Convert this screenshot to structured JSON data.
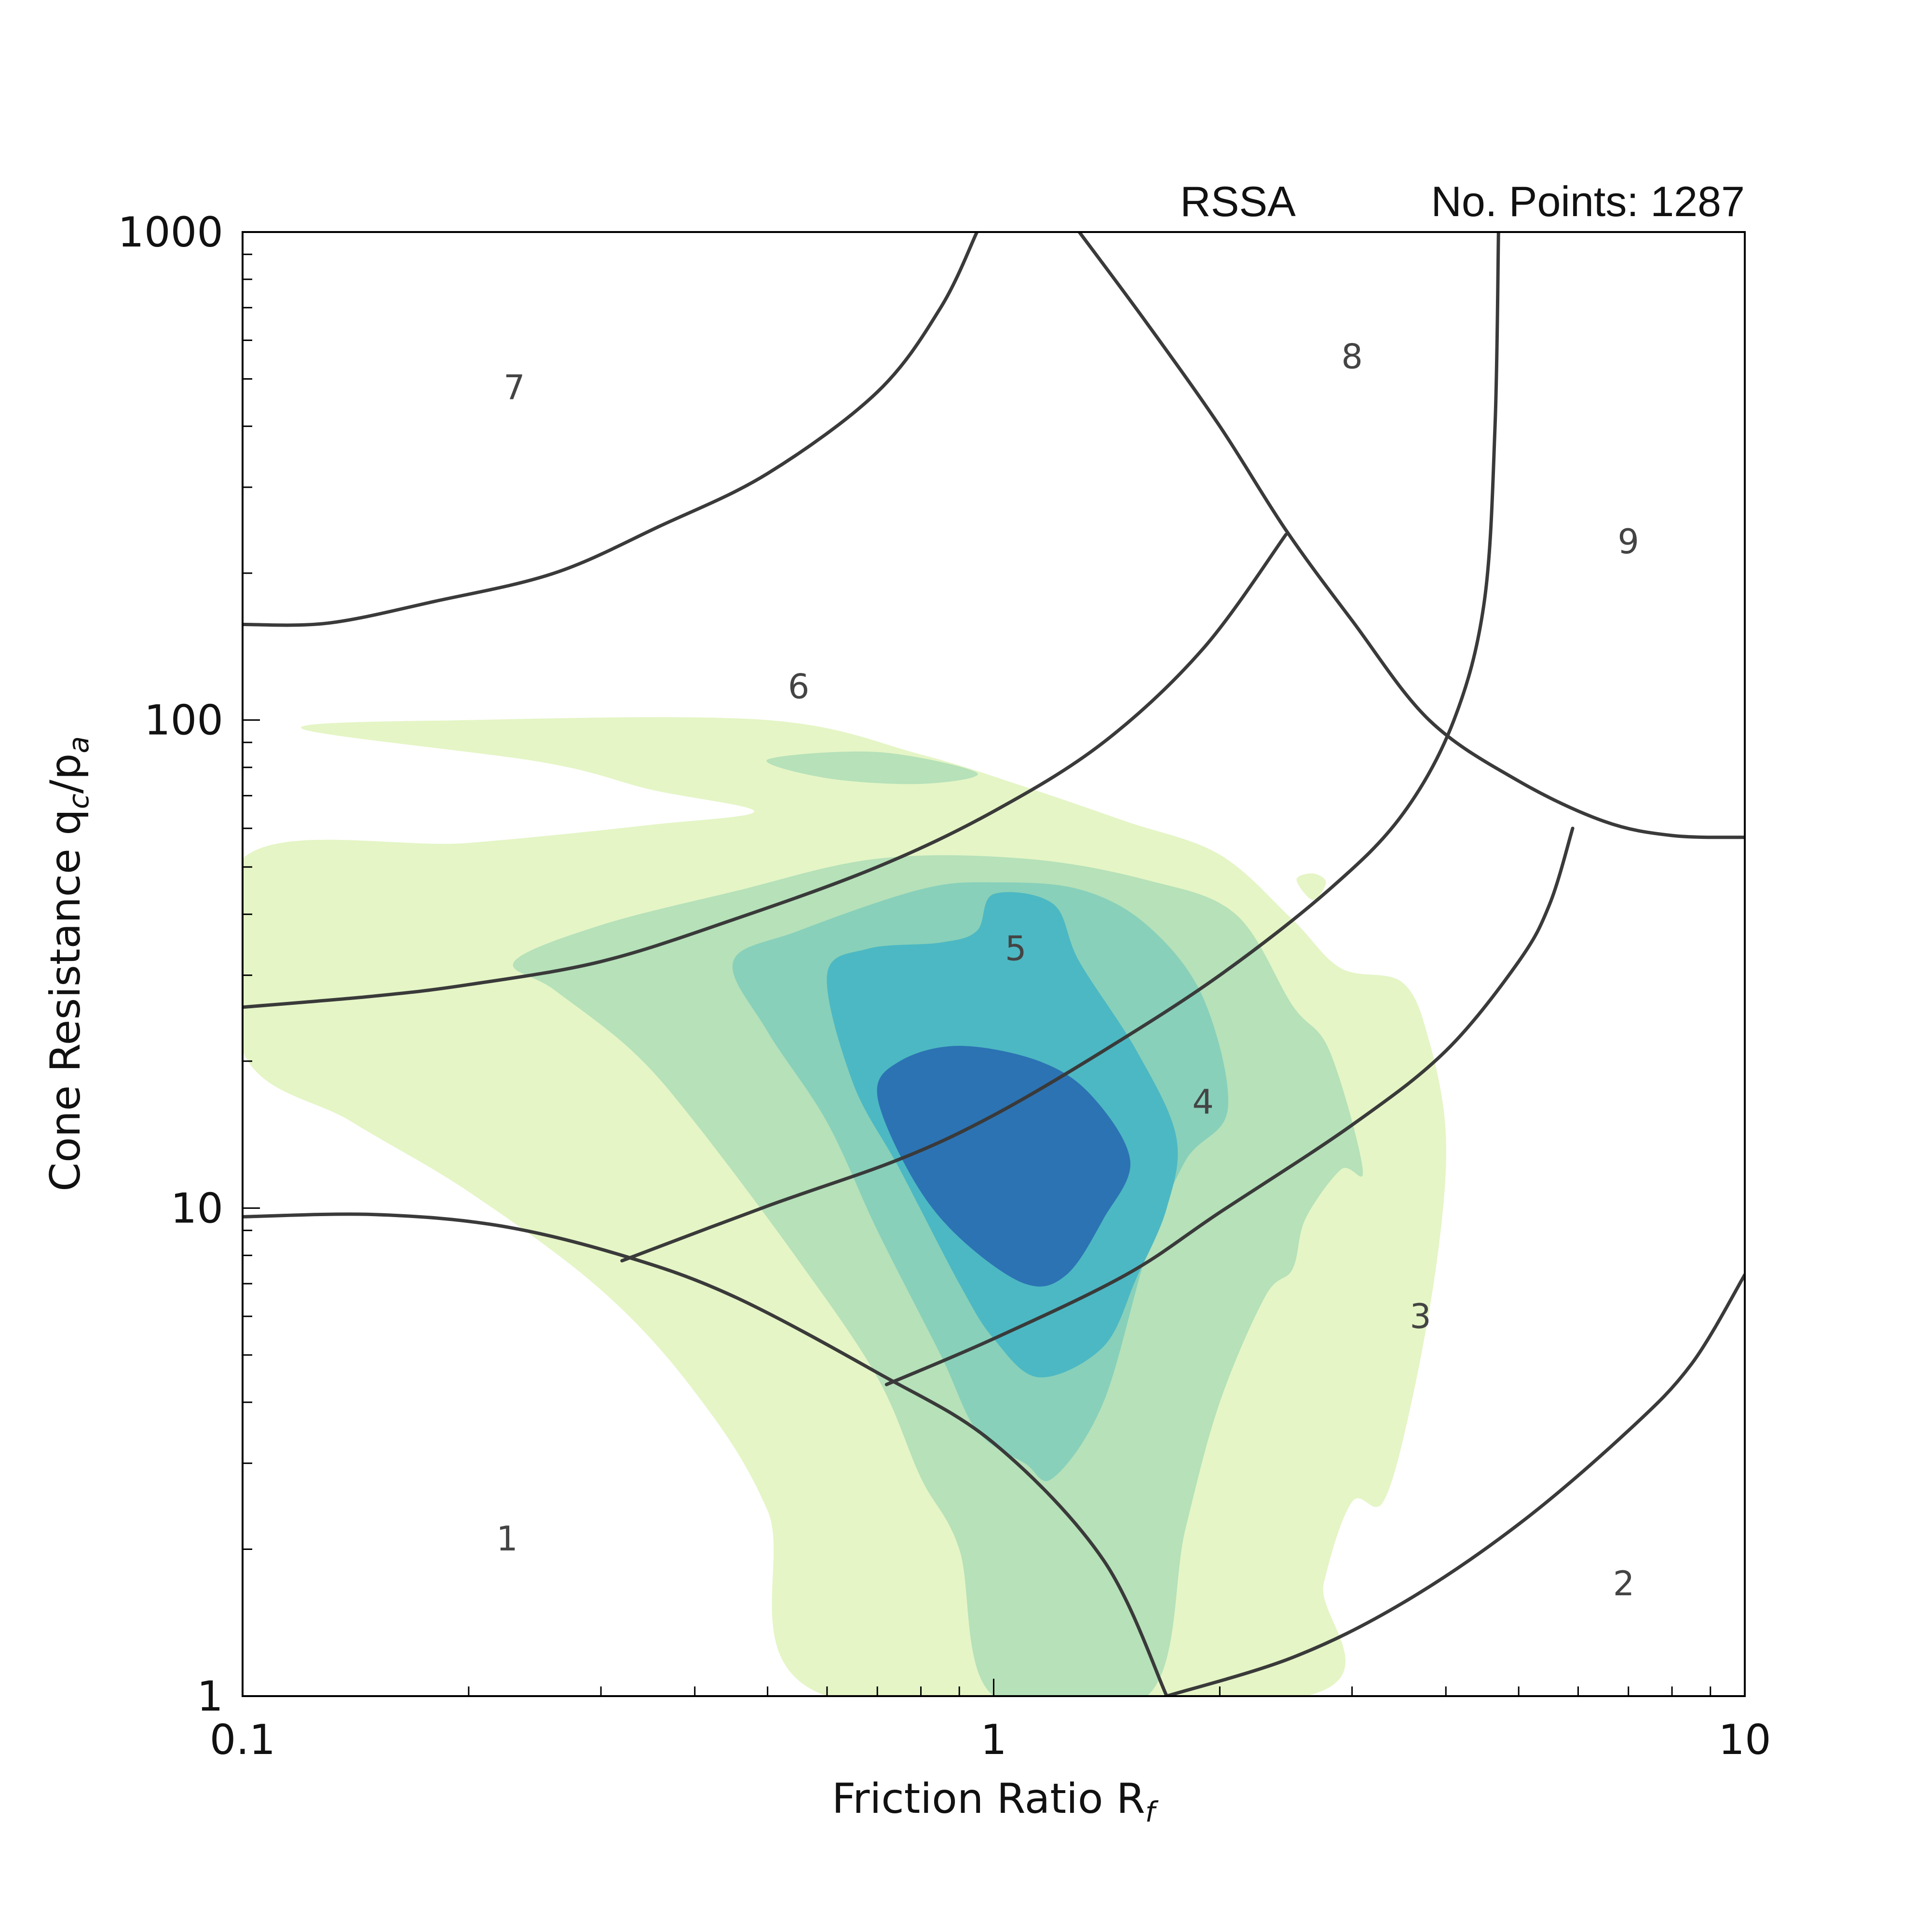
{
  "header": {
    "dataset": "RSSA",
    "points_label": "No. Points: 1287"
  },
  "chart_data": {
    "type": "contour",
    "subtype": "soil-behaviour-type chart with point-density contours",
    "dataset": "RSSA",
    "n_points": 1287,
    "xlabel": "Friction Ratio R",
    "xlabel_subscript": "f",
    "ylabel": "Cone Resistance q",
    "ylabel_sub1": "c",
    "ylabel_mid": "/p",
    "ylabel_sub2": "a",
    "xscale": "log",
    "yscale": "log",
    "xlim": [
      0.1,
      10
    ],
    "ylim": [
      1,
      1000
    ],
    "x_ticks": [
      {
        "value": 0.1,
        "label": "0.1"
      },
      {
        "value": 1,
        "label": "1"
      },
      {
        "value": 10,
        "label": "10"
      }
    ],
    "y_ticks": [
      {
        "value": 1,
        "label": "1"
      },
      {
        "value": 10,
        "label": "10"
      },
      {
        "value": 100,
        "label": "100"
      },
      {
        "value": 1000,
        "label": "1000"
      }
    ],
    "grid": false,
    "legend": "none",
    "zones": [
      {
        "label": "1",
        "x": 0.225,
        "y": 2.1
      },
      {
        "label": "2",
        "x": 6.9,
        "y": 1.7
      },
      {
        "label": "3",
        "x": 3.7,
        "y": 6.0
      },
      {
        "label": "4",
        "x": 1.9,
        "y": 16.5
      },
      {
        "label": "5",
        "x": 1.07,
        "y": 34
      },
      {
        "label": "6",
        "x": 0.55,
        "y": 117
      },
      {
        "label": "7",
        "x": 0.23,
        "y": 480
      },
      {
        "label": "8",
        "x": 3.0,
        "y": 555
      },
      {
        "label": "9",
        "x": 7.0,
        "y": 232
      }
    ],
    "zone_boundaries": [
      {
        "name": "boundary-1",
        "points": [
          [
            0.1,
            9.6
          ],
          [
            0.15,
            9.7
          ],
          [
            0.22,
            9.2
          ],
          [
            0.32,
            8.0
          ],
          [
            0.45,
            6.6
          ],
          [
            0.7,
            4.6
          ],
          [
            1.0,
            3.3
          ],
          [
            1.4,
            1.9
          ],
          [
            1.7,
            1.0
          ]
        ]
      },
      {
        "name": "boundary-2",
        "points": [
          [
            1.7,
            1.0
          ],
          [
            2.5,
            1.2
          ],
          [
            3.5,
            1.55
          ],
          [
            5.0,
            2.25
          ],
          [
            7.0,
            3.5
          ],
          [
            8.5,
            4.8
          ],
          [
            10,
            7.3
          ]
        ]
      },
      {
        "name": "boundary-3",
        "points": [
          [
            0.72,
            4.35
          ],
          [
            1.0,
            5.4
          ],
          [
            1.5,
            7.3
          ],
          [
            2.0,
            9.8
          ],
          [
            3.0,
            14.8
          ],
          [
            4.0,
            21
          ],
          [
            5.0,
            32
          ],
          [
            5.5,
            42
          ],
          [
            5.9,
            60
          ]
        ]
      },
      {
        "name": "boundary-4",
        "points": [
          [
            0.32,
            7.8
          ],
          [
            0.5,
            10.1
          ],
          [
            0.75,
            12.6
          ],
          [
            1.0,
            15.5
          ],
          [
            1.4,
            21
          ],
          [
            2.0,
            30
          ],
          [
            2.8,
            45
          ],
          [
            3.5,
            64
          ],
          [
            4.1,
            100
          ],
          [
            4.5,
            175
          ],
          [
            4.65,
            400
          ],
          [
            4.7,
            1000
          ]
        ]
      },
      {
        "name": "boundary-5",
        "points": [
          [
            0.1,
            25.8
          ],
          [
            0.15,
            27.2
          ],
          [
            0.2,
            28.7
          ],
          [
            0.3,
            32
          ],
          [
            0.45,
            39
          ],
          [
            0.7,
            50
          ],
          [
            1.0,
            65
          ],
          [
            1.4,
            90
          ],
          [
            1.9,
            140
          ],
          [
            2.45,
            240
          ]
        ]
      },
      {
        "name": "boundary-6",
        "points": [
          [
            0.1,
            157
          ],
          [
            0.13,
            158
          ],
          [
            0.18,
            175
          ],
          [
            0.26,
            200
          ],
          [
            0.36,
            250
          ],
          [
            0.5,
            320
          ],
          [
            0.7,
            470
          ],
          [
            0.85,
            700
          ],
          [
            0.95,
            1000
          ]
        ]
      },
      {
        "name": "boundary-7",
        "points": [
          [
            1.3,
            1000
          ],
          [
            1.6,
            650
          ],
          [
            2.0,
            400
          ],
          [
            2.45,
            245
          ],
          [
            3.0,
            160
          ],
          [
            3.8,
            100
          ],
          [
            5.0,
            75
          ],
          [
            6.5,
            62
          ],
          [
            8.0,
            58
          ],
          [
            10,
            57.5
          ]
        ]
      }
    ],
    "density_levels": [
      {
        "level": 1,
        "color": "#e5f5c6"
      },
      {
        "level": 2,
        "color": "#b6e1b9"
      },
      {
        "level": 3,
        "color": "#88d0ba"
      },
      {
        "level": 4,
        "color": "#4cb8c3"
      },
      {
        "level": 5,
        "color": "#2c73b3"
      }
    ],
    "contours": [
      {
        "level": 1,
        "points": [
          [
            0.1,
            52
          ],
          [
            0.2,
            56
          ],
          [
            0.35,
            61
          ],
          [
            0.48,
            65
          ],
          [
            0.35,
            72
          ],
          [
            0.25,
            82
          ],
          [
            0.12,
            96
          ],
          [
            0.2,
            100
          ],
          [
            0.5,
            100
          ],
          [
            0.8,
            85
          ],
          [
            1.1,
            73
          ],
          [
            1.5,
            62
          ],
          [
            2.0,
            53
          ],
          [
            2.5,
            39
          ],
          [
            2.9,
            31
          ],
          [
            3.5,
            29
          ],
          [
            3.8,
            22
          ],
          [
            4.0,
            14
          ],
          [
            3.9,
            8
          ],
          [
            3.6,
            4
          ],
          [
            3.3,
            2.5
          ],
          [
            3.0,
            2.5
          ],
          [
            2.75,
            1.7
          ],
          [
            2.6,
            1.0
          ],
          [
            0.6,
            1.0
          ],
          [
            0.5,
            2.4
          ],
          [
            0.4,
            4.2
          ],
          [
            0.3,
            6.8
          ],
          [
            0.2,
            10.8
          ],
          [
            0.14,
            15
          ],
          [
            0.1,
            21
          ]
        ]
      },
      {
        "level": 1,
        "points": [
          [
            2.53,
            47.1
          ],
          [
            2.66,
            48.5
          ],
          [
            2.77,
            46.5
          ],
          [
            2.66,
            42.8
          ]
        ]
      },
      {
        "level": 2,
        "points": [
          [
            0.26,
            28
          ],
          [
            0.23,
            32
          ],
          [
            0.3,
            38
          ],
          [
            0.45,
            44.5
          ],
          [
            0.7,
            52
          ],
          [
            1.1,
            52
          ],
          [
            1.6,
            47
          ],
          [
            2.1,
            40
          ],
          [
            2.5,
            26
          ],
          [
            2.8,
            21
          ],
          [
            3.1,
            12
          ],
          [
            2.9,
            12
          ],
          [
            2.6,
            9.5
          ],
          [
            2.5,
            7.5
          ],
          [
            2.3,
            6.6
          ],
          [
            2.0,
            4
          ],
          [
            1.8,
            2.2
          ],
          [
            1.6,
            1.0
          ],
          [
            1.0,
            1.0
          ],
          [
            0.9,
            2
          ],
          [
            0.8,
            2.8
          ],
          [
            0.7,
            4.5
          ],
          [
            0.55,
            7.8
          ],
          [
            0.4,
            15
          ],
          [
            0.33,
            21
          ]
        ]
      },
      {
        "level": 2,
        "points": [
          [
            0.5,
            83
          ],
          [
            0.7,
            86
          ],
          [
            0.95,
            78
          ],
          [
            0.8,
            74
          ],
          [
            0.6,
            76
          ]
        ]
      },
      {
        "level": 3,
        "points": [
          [
            0.45,
            32
          ],
          [
            0.55,
            37
          ],
          [
            0.8,
            45
          ],
          [
            1.0,
            46.5
          ],
          [
            1.3,
            45
          ],
          [
            1.6,
            38
          ],
          [
            1.9,
            27
          ],
          [
            2.05,
            16
          ],
          [
            1.8,
            12.5
          ],
          [
            1.6,
            8.1
          ],
          [
            1.4,
            4
          ],
          [
            1.2,
            2.8
          ],
          [
            1.1,
            3.0
          ],
          [
            0.95,
            3.5
          ],
          [
            0.85,
            5
          ],
          [
            0.7,
            9
          ],
          [
            0.6,
            15
          ],
          [
            0.5,
            23
          ]
        ]
      },
      {
        "level": 4,
        "points": [
          [
            0.6,
            30
          ],
          [
            0.68,
            34
          ],
          [
            0.85,
            35
          ],
          [
            0.95,
            37
          ],
          [
            1.0,
            44
          ],
          [
            1.2,
            42
          ],
          [
            1.3,
            32
          ],
          [
            1.55,
            21
          ],
          [
            1.75,
            14
          ],
          [
            1.7,
            10
          ],
          [
            1.55,
            7.2
          ],
          [
            1.4,
            5.2
          ],
          [
            1.15,
            4.5
          ],
          [
            1.0,
            5.4
          ],
          [
            0.9,
            7
          ],
          [
            0.75,
            12
          ],
          [
            0.65,
            18
          ]
        ]
      },
      {
        "level": 5,
        "points": [
          [
            0.75,
            20
          ],
          [
            0.9,
            21.5
          ],
          [
            1.15,
            20
          ],
          [
            1.35,
            17
          ],
          [
            1.52,
            12.5
          ],
          [
            1.4,
            9.5
          ],
          [
            1.25,
            7.3
          ],
          [
            1.1,
            7.0
          ],
          [
            0.9,
            8.7
          ],
          [
            0.78,
            11.5
          ],
          [
            0.7,
            17
          ]
        ]
      }
    ]
  }
}
